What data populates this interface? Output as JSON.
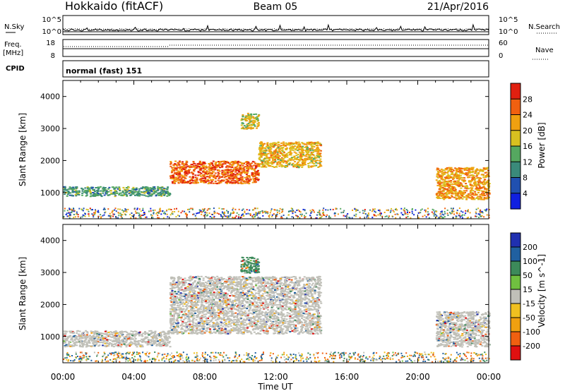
{
  "header": {
    "station": "Hokkaido (fitACF)",
    "beam": "Beam 05",
    "date": "21/Apr/2016"
  },
  "top_panels": {
    "nsky_label": "N.Sky",
    "nsearch_label": "N.Search",
    "noise_ticks": [
      "10^5",
      "10^0"
    ],
    "freq_label": "Freq.",
    "freq_unit": "[MHz]",
    "freq_ticks": [
      "18",
      "8"
    ],
    "nave_label": "Nave",
    "nave_ticks": [
      "60",
      "0"
    ],
    "cpid_label": "CPID",
    "cpid_text": "normal (fast) 151"
  },
  "axes": {
    "x_ticks": [
      "00:00",
      "04:00",
      "08:00",
      "12:00",
      "16:00",
      "20:00",
      "00:00"
    ],
    "x_label": "Time UT",
    "y_ticks": [
      "1000",
      "2000",
      "3000",
      "4000"
    ],
    "y_label": "Slant Range [km]"
  },
  "power_scale": {
    "label": "Power [dB]",
    "ticks": [
      "4",
      "8",
      "12",
      "16",
      "20",
      "24",
      "28"
    ],
    "colors": [
      "#1020e0",
      "#2050b0",
      "#3a8a7a",
      "#55a860",
      "#d8c020",
      "#f0a010",
      "#f06010",
      "#e02010"
    ]
  },
  "velocity_scale": {
    "label": "Velocity [m s^-1]",
    "ticks": [
      "200",
      "100",
      "50",
      "15",
      "-15",
      "-50",
      "-100",
      "-200"
    ],
    "colors": [
      "#2030b0",
      "#2060a0",
      "#3c8a5a",
      "#70c040",
      "#c0c0b8",
      "#f0c020",
      "#f0a010",
      "#f06010",
      "#e01010"
    ]
  },
  "chart_data": [
    {
      "type": "heatmap",
      "title": "Power",
      "xlabel": "Time UT",
      "ylabel": "Slant Range [km]",
      "xlim": [
        0,
        24
      ],
      "ylim": [
        180,
        4500
      ],
      "regions": [
        {
          "t": [
            0.0,
            6.0
          ],
          "r": [
            900,
            1200
          ],
          "power": 12
        },
        {
          "t": [
            6.0,
            11.0
          ],
          "r": [
            1300,
            2000
          ],
          "power": 26
        },
        {
          "t": [
            11.0,
            14.5
          ],
          "r": [
            1800,
            2600
          ],
          "power": 20
        },
        {
          "t": [
            10.0,
            11.0
          ],
          "r": [
            3000,
            3500
          ],
          "power": 18
        },
        {
          "t": [
            21.0,
            24.0
          ],
          "r": [
            800,
            1800
          ],
          "power": 22
        }
      ]
    },
    {
      "type": "heatmap",
      "title": "Velocity",
      "xlabel": "Time UT",
      "ylabel": "Slant Range [km]",
      "xlim": [
        0,
        24
      ],
      "ylim": [
        180,
        4500
      ],
      "regions": [
        {
          "t": [
            0.0,
            6.0
          ],
          "r": [
            700,
            1200
          ],
          "velocity": 0
        },
        {
          "t": [
            6.0,
            14.5
          ],
          "r": [
            1100,
            2900
          ],
          "velocity": 0
        },
        {
          "t": [
            10.0,
            11.0
          ],
          "r": [
            3000,
            3500
          ],
          "velocity": 50
        },
        {
          "t": [
            21.0,
            24.0
          ],
          "r": [
            700,
            1800
          ],
          "velocity": 0
        }
      ]
    }
  ]
}
